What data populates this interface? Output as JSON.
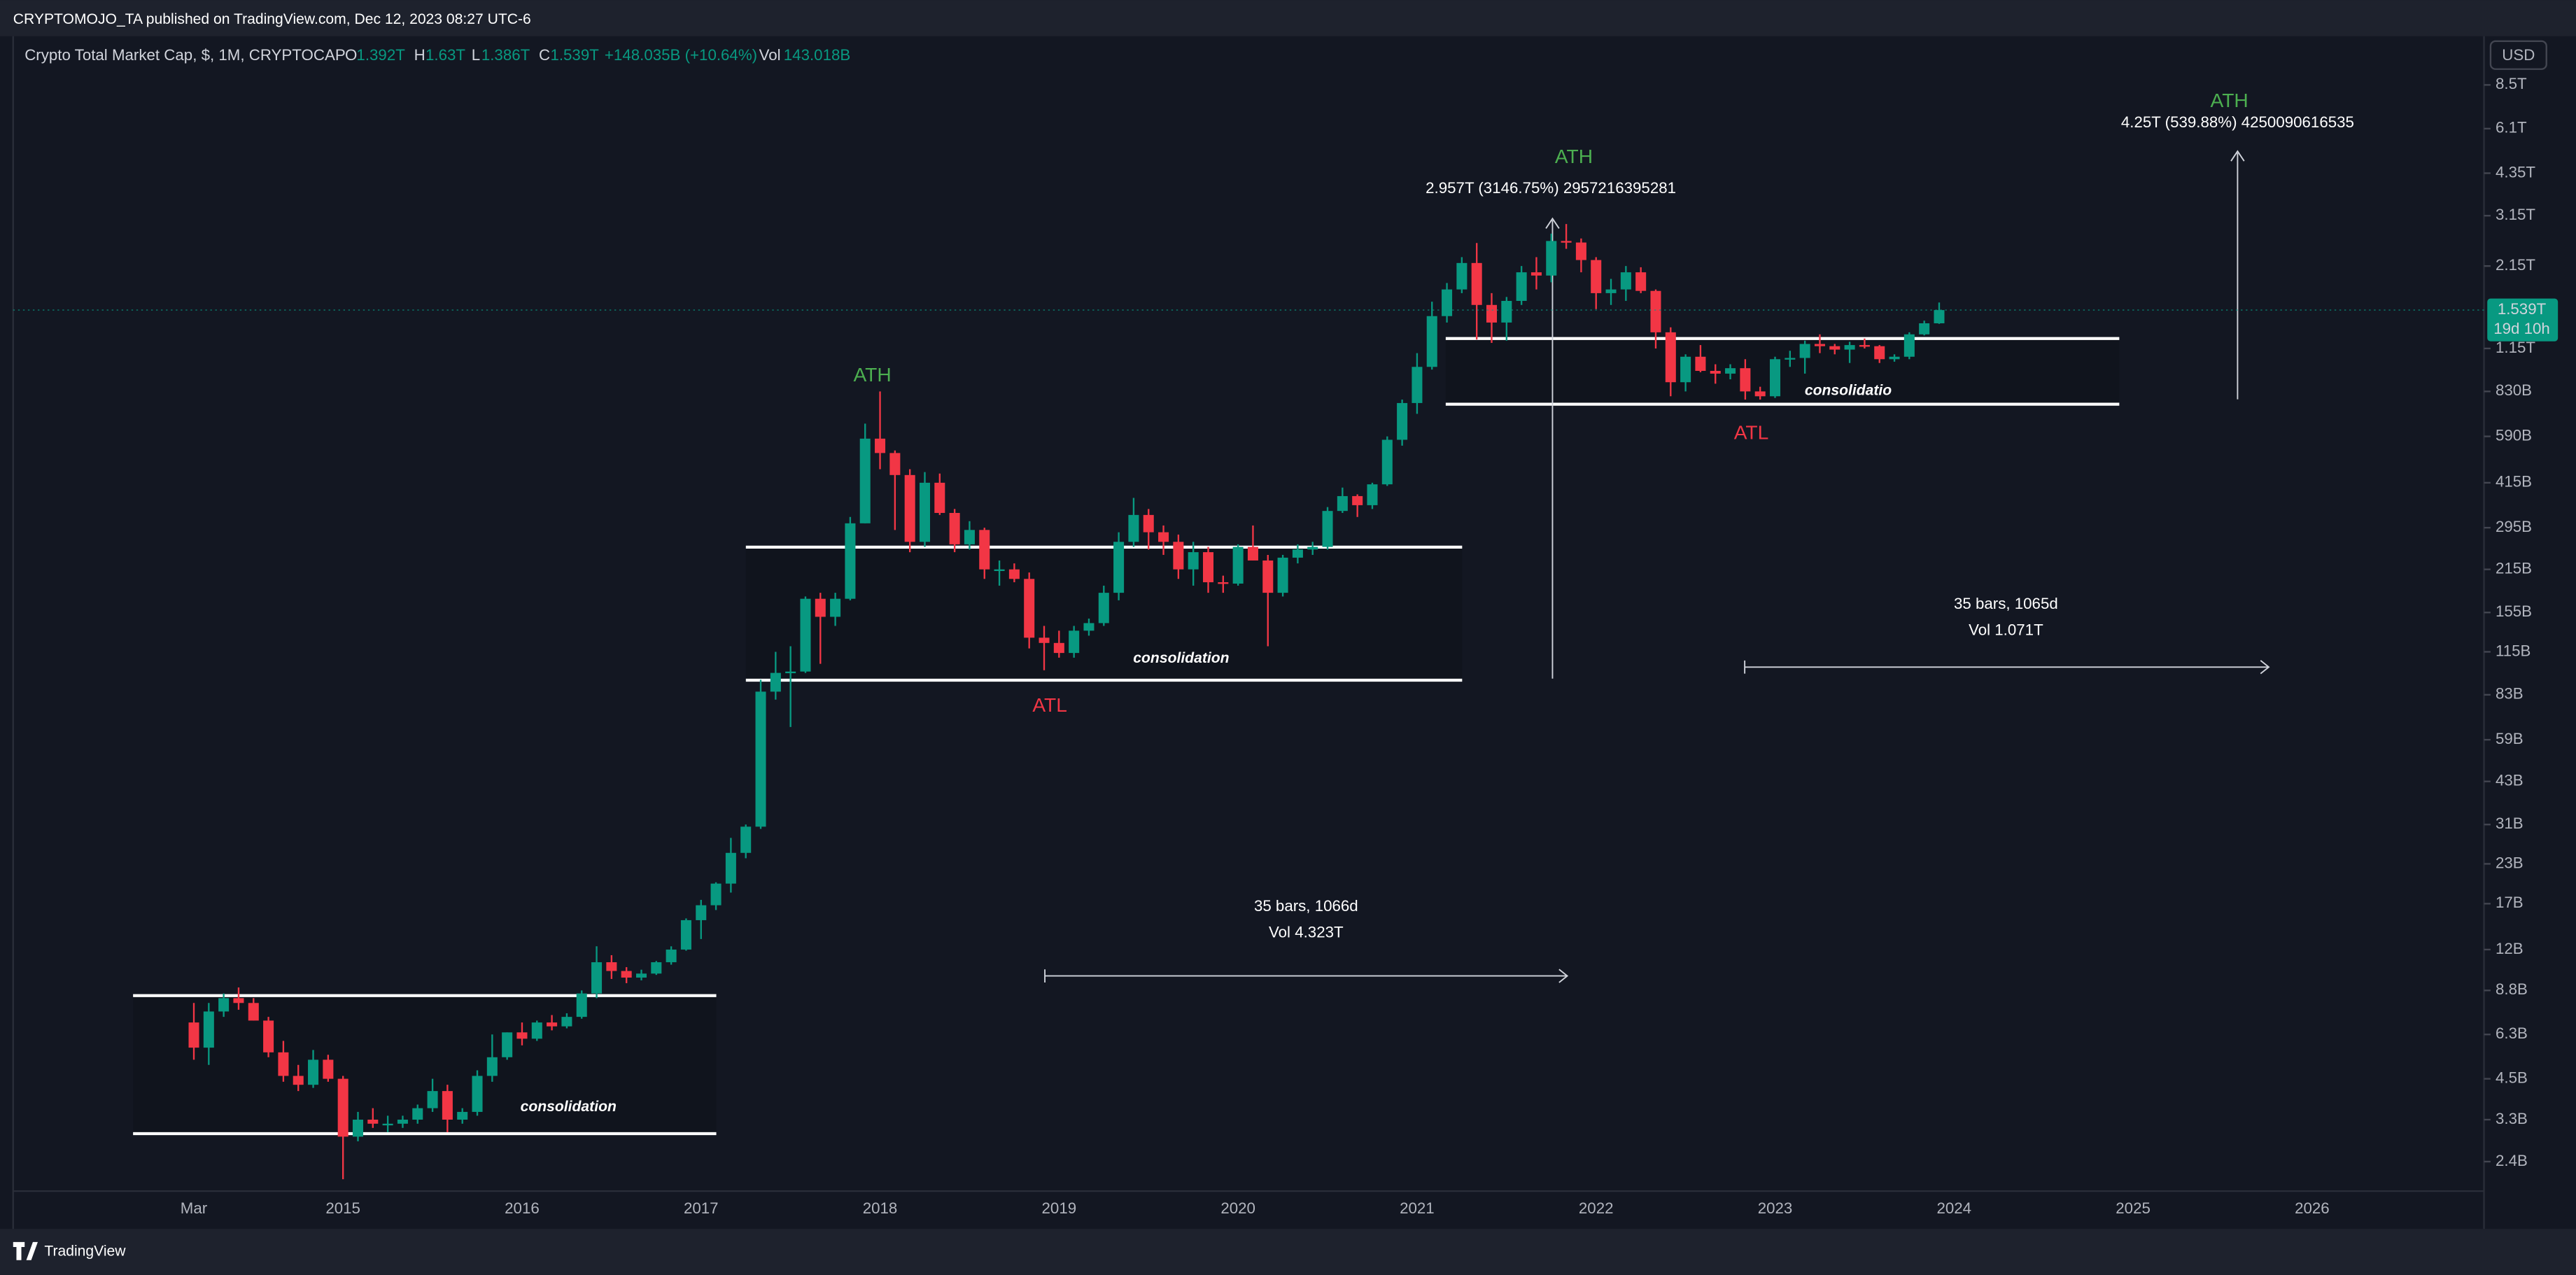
{
  "header": {
    "published": "CRYPTOMOJO_TA published on TradingView.com, Dec 12, 2023 08:27 UTC-6"
  },
  "chart_data": {
    "type": "candlestick",
    "title": "Crypto Total Market Cap, $, 1M, CRYPTOCAP",
    "ohlc_legend": {
      "o_label": "O",
      "o": "1.392T",
      "h_label": "H",
      "h": "1.63T",
      "l_label": "L",
      "l": "1.386T",
      "c_label": "C",
      "c": "1.539T",
      "change": "+148.035B (+10.64%)",
      "vol_label": "Vol",
      "vol": "143.018B"
    },
    "open": [
      6900000000.0,
      5700000000.0,
      7500000000.0,
      8300000000.0,
      8000000000.0,
      7000000000.0,
      5500000000.0,
      4600000000.0,
      4300000000.0,
      5200000000.0,
      4500000000.0,
      2900000000.0,
      3300000000.0,
      3200000000.0,
      3200000000.0,
      3300000000.0,
      3600000000.0,
      4100000000.0,
      3300000000.0,
      3500000000.0,
      4600000000.0,
      5300000000.0,
      6400000000.0,
      6100000000.0,
      6900000000.0,
      6700000000.0,
      7200000000.0,
      8600000000.0,
      10900000000.0,
      10200000000.0,
      9700000000.0,
      10000000000.0,
      10900000000.0,
      12000000000.0,
      15000000000.0,
      16800000000.0,
      19800000000.0,
      25000000000.0,
      30500000000.0,
      85000000000.0,
      98000000000.0,
      99000000000.0,
      172000000000.0,
      150000000000.0,
      172000000000.0,
      305000000000.0,
      580000000000.0,
      520000000000.0,
      440000000000.0,
      265000000000.0,
      415000000000.0,
      330000000000.0,
      260000000000.0,
      290000000000.0,
      215000000000.0,
      215000000000.0,
      200000000000.0,
      128000000000.0,
      123000000000.0,
      114000000000.0,
      135000000000.0,
      143000000000.0,
      180000000000.0,
      265000000000.0,
      325000000000.0,
      285000000000.0,
      265000000000.0,
      215000000000.0,
      245000000000.0,
      195000000000.0,
      193000000000.0,
      255000000000.0,
      230000000000.0,
      180000000000.0,
      235000000000.0,
      250000000000.0,
      255000000000.0,
      335000000000.0,
      375000000000.0,
      350000000000.0,
      410000000000.0,
      575000000000.0,
      760000000000.0,
      1000000000000.0,
      1470000000000.0,
      1800000000000.0,
      2200000000000.0,
      1600000000000.0,
      1400000000000.0,
      1650000000000.0,
      2050000000000.0,
      2000000000000.0,
      2600000000000.0,
      2570000000000.0,
      2250000000000.0,
      1750000000000.0,
      1800000000000.0,
      2050000000000.0,
      1780000000000.0,
      1300000000000.0,
      890000000000.0,
      1080000000000.0,
      970000000000.0,
      950000000000.0,
      990000000000.0,
      830000000000.0,
      800000000000.0,
      1060000000000.0,
      1070000000000.0,
      1190000000000.0,
      1170000000000.0,
      1140000000000.0,
      1180000000000.0,
      1170000000000.0,
      1060000000000.0,
      1080000000000.0,
      1280000000000.0,
      1392000000000.0
    ],
    "high": [
      8000000000.0,
      8000000000.0,
      8600000000.0,
      9000000000.0,
      8300000000.0,
      7200000000.0,
      6000000000.0,
      5000000000.0,
      5600000000.0,
      5400000000.0,
      4600000000.0,
      3500000000.0,
      3600000000.0,
      3400000000.0,
      3400000000.0,
      3700000000.0,
      4500000000.0,
      4300000000.0,
      3600000000.0,
      4800000000.0,
      6300000000.0,
      6400000000.0,
      6900000000.0,
      7000000000.0,
      7300000000.0,
      7400000000.0,
      8800000000.0,
      12300000000.0,
      11500000000.0,
      10500000000.0,
      10300000000.0,
      11000000000.0,
      12300000000.0,
      15200000000.0,
      17500000000.0,
      20000000000.0,
      28000000000.0,
      31000000000.0,
      93000000000.0,
      115000000000.0,
      120000000000.0,
      175000000000.0,
      180000000000.0,
      180000000000.0,
      320000000000.0,
      650000000000.0,
      830000000000.0,
      530000000000.0,
      460000000000.0,
      450000000000.0,
      445000000000.0,
      340000000000.0,
      310000000000.0,
      295000000000.0,
      230000000000.0,
      225000000000.0,
      210000000000.0,
      140000000000.0,
      135000000000.0,
      140000000000.0,
      148000000000.0,
      190000000000.0,
      285000000000.0,
      370000000000.0,
      340000000000.0,
      300000000000.0,
      280000000000.0,
      265000000000.0,
      255000000000.0,
      205000000000.0,
      260000000000.0,
      300000000000.0,
      240000000000.0,
      240000000000.0,
      260000000000.0,
      265000000000.0,
      345000000000.0,
      400000000000.0,
      380000000000.0,
      415000000000.0,
      590000000000.0,
      780000000000.0,
      1110000000000.0,
      1640000000000.0,
      1890000000000.0,
      2300000000000.0,
      2560000000000.0,
      1750000000000.0,
      1700000000000.0,
      2150000000000.0,
      2300000000000.0,
      2750000000000.0,
      2957000000000.0,
      2650000000000.0,
      2300000000000.0,
      1950000000000.0,
      2150000000000.0,
      2130000000000.0,
      1800000000000.0,
      1350000000000.0,
      1100000000000.0,
      1180000000000.0,
      1020000000000.0,
      1020000000000.0,
      1060000000000.0,
      860000000000.0,
      1080000000000.0,
      1130000000000.0,
      1220000000000.0,
      1280000000000.0,
      1190000000000.0,
      1210000000000.0,
      1240000000000.0,
      1180000000000.0,
      1100000000000.0,
      1300000000000.0,
      1420000000000.0,
      1630000000000.0
    ],
    "low": [
      5200000000.0,
      5000000000.0,
      7200000000.0,
      7600000000.0,
      7000000000.0,
      5300000000.0,
      4400000000.0,
      4100000000.0,
      4200000000.0,
      4400000000.0,
      2100000000.0,
      2800000000.0,
      3100000000.0,
      3000000000.0,
      3100000000.0,
      3200000000.0,
      3500000000.0,
      3000000000.0,
      3200000000.0,
      3400000000.0,
      4400000000.0,
      5200000000.0,
      5800000000.0,
      6000000000.0,
      6500000000.0,
      6600000000.0,
      7100000000.0,
      8300000000.0,
      9600000000.0,
      9300000000.0,
      9500000000.0,
      9900000000.0,
      10700000000.0,
      11900000000.0,
      13000000000.0,
      16200000000.0,
      18500000000.0,
      24000000000.0,
      30000000000.0,
      80000000000.0,
      65000000000.0,
      98000000000.0,
      105000000000.0,
      140000000000.0,
      170000000000.0,
      305000000000.0,
      460000000000.0,
      290000000000.0,
      245000000000.0,
      255000000000.0,
      325000000000.0,
      245000000000.0,
      250000000000.0,
      200000000000.0,
      190000000000.0,
      195000000000.0,
      118000000000.0,
      100000000000.0,
      110000000000.0,
      110000000000.0,
      130000000000.0,
      140000000000.0,
      170000000000.0,
      255000000000.0,
      250000000000.0,
      240000000000.0,
      200000000000.0,
      190000000000.0,
      180000000000.0,
      180000000000.0,
      190000000000.0,
      230000000000.0,
      120000000000.0,
      175000000000.0,
      225000000000.0,
      240000000000.0,
      250000000000.0,
      330000000000.0,
      320000000000.0,
      340000000000.0,
      405000000000.0,
      550000000000.0,
      700000000000.0,
      980000000000.0,
      1400000000000.0,
      1750000000000.0,
      1230000000000.0,
      1200000000000.0,
      1220000000000.0,
      1600000000000.0,
      1800000000000.0,
      1900000000000.0,
      2450000000000.0,
      2050000000000.0,
      1550000000000.0,
      1600000000000.0,
      1650000000000.0,
      1750000000000.0,
      1150000000000.0,
      800000000000.0,
      830000000000.0,
      960000000000.0,
      880000000000.0,
      910000000000.0,
      780000000000.0,
      780000000000.0,
      790000000000.0,
      1000000000000.0,
      950000000000.0,
      1110000000000.0,
      1100000000000.0,
      1030000000000.0,
      1150000000000.0,
      1030000000000.0,
      1040000000000.0,
      1060000000000.0,
      1270000000000.0,
      1386000000000.0
    ],
    "close": [
      5700000000.0,
      7500000000.0,
      8300000000.0,
      8000000000.0,
      7000000000.0,
      5500000000.0,
      4600000000.0,
      4300000000.0,
      5200000000.0,
      4500000000.0,
      2900000000.0,
      3300000000.0,
      3200000000.0,
      3200000000.0,
      3300000000.0,
      3600000000.0,
      4100000000.0,
      3300000000.0,
      3500000000.0,
      4600000000.0,
      5300000000.0,
      6400000000.0,
      6100000000.0,
      6900000000.0,
      6700000000.0,
      7200000000.0,
      8600000000.0,
      10900000000.0,
      10200000000.0,
      9700000000.0,
      10000000000.0,
      10900000000.0,
      12000000000.0,
      15000000000.0,
      16800000000.0,
      19800000000.0,
      25000000000.0,
      30500000000.0,
      85000000000.0,
      98000000000.0,
      99000000000.0,
      172000000000.0,
      150000000000.0,
      172000000000.0,
      305000000000.0,
      580000000000.0,
      520000000000.0,
      440000000000.0,
      265000000000.0,
      415000000000.0,
      330000000000.0,
      260000000000.0,
      290000000000.0,
      215000000000.0,
      215000000000.0,
      200000000000.0,
      128000000000.0,
      123000000000.0,
      114000000000.0,
      135000000000.0,
      143000000000.0,
      180000000000.0,
      265000000000.0,
      325000000000.0,
      285000000000.0,
      265000000000.0,
      215000000000.0,
      245000000000.0,
      195000000000.0,
      193000000000.0,
      255000000000.0,
      230000000000.0,
      180000000000.0,
      235000000000.0,
      250000000000.0,
      255000000000.0,
      335000000000.0,
      375000000000.0,
      350000000000.0,
      410000000000.0,
      575000000000.0,
      760000000000.0,
      1000000000000.0,
      1470000000000.0,
      1800000000000.0,
      2200000000000.0,
      1600000000000.0,
      1400000000000.0,
      1650000000000.0,
      2050000000000.0,
      2000000000000.0,
      2600000000000.0,
      2570000000000.0,
      2250000000000.0,
      1750000000000.0,
      1800000000000.0,
      2050000000000.0,
      1780000000000.0,
      1300000000000.0,
      890000000000.0,
      1080000000000.0,
      970000000000.0,
      950000000000.0,
      990000000000.0,
      830000000000.0,
      800000000000.0,
      1060000000000.0,
      1070000000000.0,
      1190000000000.0,
      1170000000000.0,
      1140000000000.0,
      1180000000000.0,
      1170000000000.0,
      1060000000000.0,
      1080000000000.0,
      1280000000000.0,
      1392000000000.0,
      1539000000000.0
    ],
    "up_color": "#089981",
    "down_color": "#f23645",
    "log_scale": true,
    "grid": false,
    "ylim": [
      1440000000.0,
      12300000000000.0
    ],
    "yticks": [
      {
        "value": 8500000000000.0,
        "label": "8.5T"
      },
      {
        "value": 6100000000000.0,
        "label": "6.1T"
      },
      {
        "value": 4350000000000.0,
        "label": "4.35T"
      },
      {
        "value": 3150000000000.0,
        "label": "3.15T"
      },
      {
        "value": 2150000000000.0,
        "label": "2.15T"
      },
      {
        "value": 1150000000000.0,
        "label": "1.15T"
      },
      {
        "value": 830000000000.0,
        "label": "830B"
      },
      {
        "value": 590000000000.0,
        "label": "590B"
      },
      {
        "value": 415000000000.0,
        "label": "415B"
      },
      {
        "value": 295000000000.0,
        "label": "295B"
      },
      {
        "value": 215000000000.0,
        "label": "215B"
      },
      {
        "value": 155000000000.0,
        "label": "155B"
      },
      {
        "value": 115000000000.0,
        "label": "115B"
      },
      {
        "value": 83000000000.0,
        "label": "83B"
      },
      {
        "value": 59000000000.0,
        "label": "59B"
      },
      {
        "value": 43000000000.0,
        "label": "43B"
      },
      {
        "value": 31000000000.0,
        "label": "31B"
      },
      {
        "value": 23000000000.0,
        "label": "23B"
      },
      {
        "value": 17000000000.0,
        "label": "17B"
      },
      {
        "value": 12000000000.0,
        "label": "12B"
      },
      {
        "value": 8800000000.0,
        "label": "8.8B"
      },
      {
        "value": 6300000000.0,
        "label": "6.3B"
      },
      {
        "value": 4500000000.0,
        "label": "4.5B"
      },
      {
        "value": 3300000000.0,
        "label": "3.3B"
      },
      {
        "value": 2400000000.0,
        "label": "2.4B"
      }
    ],
    "xticks": [
      "Mar",
      "2015",
      "2016",
      "2017",
      "2018",
      "2019",
      "2020",
      "2021",
      "2022",
      "2023",
      "2024",
      "2025",
      "2026"
    ],
    "currency": "USD",
    "last_price": {
      "value": 1539000000000.0,
      "label": "1.539T"
    },
    "countdown": "19d 10h",
    "annotations": [
      "consolidation",
      "ATH",
      "consolidation",
      "ATL",
      "ATH",
      "2.957T (3146.75%) 2957216395281",
      "35 bars, 1066d",
      "Vol 4.323T",
      "consolidatio",
      "ATL",
      "35 bars, 1065d",
      "Vol 1.071T",
      "ATH",
      "4.25T (539.88%) 4250090616535"
    ]
  },
  "footer": {
    "brand": "TradingView"
  }
}
